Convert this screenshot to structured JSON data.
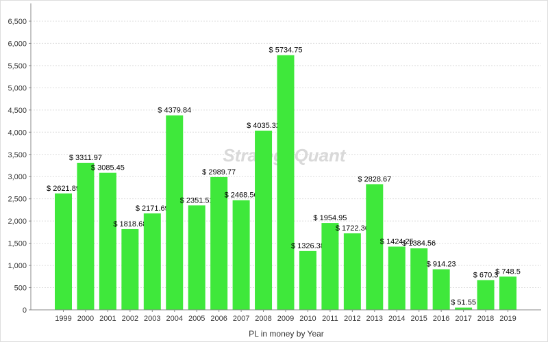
{
  "chart_data": {
    "type": "bar",
    "title": "",
    "xlabel": "PL in money by Year",
    "ylabel": "",
    "ylim": [
      0,
      6900
    ],
    "yticks": [
      0,
      500,
      1000,
      1500,
      2000,
      2500,
      3000,
      3500,
      4000,
      4500,
      5000,
      5500,
      6000,
      6500
    ],
    "ytick_labels": [
      "0",
      "500",
      "1,000",
      "1,500",
      "2,000",
      "2,500",
      "3,000",
      "3,500",
      "4,000",
      "4,500",
      "5,000",
      "5,500",
      "6,000",
      "6,500"
    ],
    "categories": [
      "1999",
      "2000",
      "2001",
      "2002",
      "2003",
      "2004",
      "2005",
      "2006",
      "2007",
      "2008",
      "2009",
      "2010",
      "2011",
      "2012",
      "2013",
      "2014",
      "2015",
      "2016",
      "2017",
      "2018",
      "2019"
    ],
    "values": [
      2621.89,
      3311.97,
      3085.45,
      1818.68,
      2171.69,
      4379.84,
      2351.51,
      2989.77,
      2468.56,
      4035.32,
      5734.75,
      1326.38,
      1954.95,
      1722.36,
      2828.67,
      1424.25,
      1384.56,
      914.23,
      51.55,
      670.3,
      748.5
    ],
    "data_labels": [
      "$ 2621.89",
      "$ 3311.97",
      "$ 3085.45",
      "$ 1818.68",
      "$ 2171.69",
      "$ 4379.84",
      "$ 2351.51",
      "$ 2989.77",
      "$ 2468.56",
      "$ 4035.32",
      "$ 5734.75",
      "$ 1326.38",
      "$ 1954.95",
      "$ 1722.36",
      "$ 2828.67",
      "$ 1424.25",
      "$ 1384.56",
      "$ 914.23",
      "$ 51.55",
      "$ 670.3",
      "$ 748.5"
    ],
    "grid": true,
    "bar_color": "#3fe83b",
    "watermark": "StrategyQuant"
  }
}
